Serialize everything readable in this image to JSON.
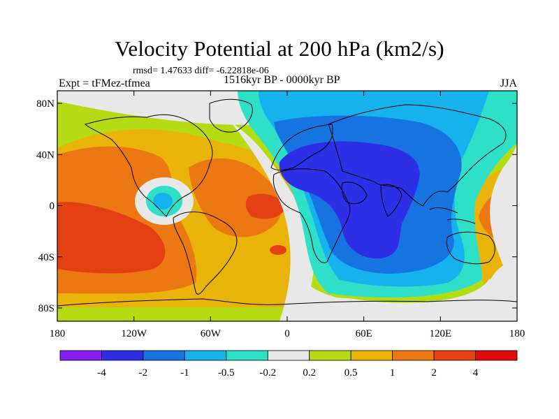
{
  "title": "Velocity Potential at 200 hPa (km2/s)",
  "stats_line": "rmsd= 1.47633 diff= -6.22818e-06",
  "experiment_label": "Expt = tFMez-tfmea",
  "period_label": "1516kyr BP - 0000kyr BP",
  "season_label": "JJA",
  "lat_ticks": [
    {
      "value": 80,
      "label": "80N"
    },
    {
      "value": 40,
      "label": "40N"
    },
    {
      "value": 0,
      "label": "0"
    },
    {
      "value": -40,
      "label": "40S"
    },
    {
      "value": -80,
      "label": "80S"
    }
  ],
  "lon_ticks": [
    {
      "value": -180,
      "label": "180"
    },
    {
      "value": -120,
      "label": "120W"
    },
    {
      "value": -60,
      "label": "60W"
    },
    {
      "value": 0,
      "label": "0"
    },
    {
      "value": 60,
      "label": "60E"
    },
    {
      "value": 120,
      "label": "120E"
    },
    {
      "value": 180,
      "label": "180"
    }
  ],
  "colorbar": {
    "colors": [
      "#8a1ef0",
      "#2d2ee6",
      "#1673e0",
      "#16b2ee",
      "#2fe0c8",
      "#e8e8e8",
      "#b4dc14",
      "#e8b40a",
      "#ec7814",
      "#e44014",
      "#e00a0a"
    ],
    "labels": [
      "-4",
      "-2",
      "-1",
      "-0.5",
      "-0.2",
      "0.2",
      "0.5",
      "1",
      "2",
      "4"
    ]
  },
  "colors": {
    "blue_dark": "#2d2ee6",
    "blue": "#1673e0",
    "cyan": "#16b2ee",
    "teal": "#2fe0c8",
    "white": "#e8e8e8",
    "green": "#b4dc14",
    "yellow": "#e8b40a",
    "orange": "#ec7814",
    "red": "#e44014"
  }
}
